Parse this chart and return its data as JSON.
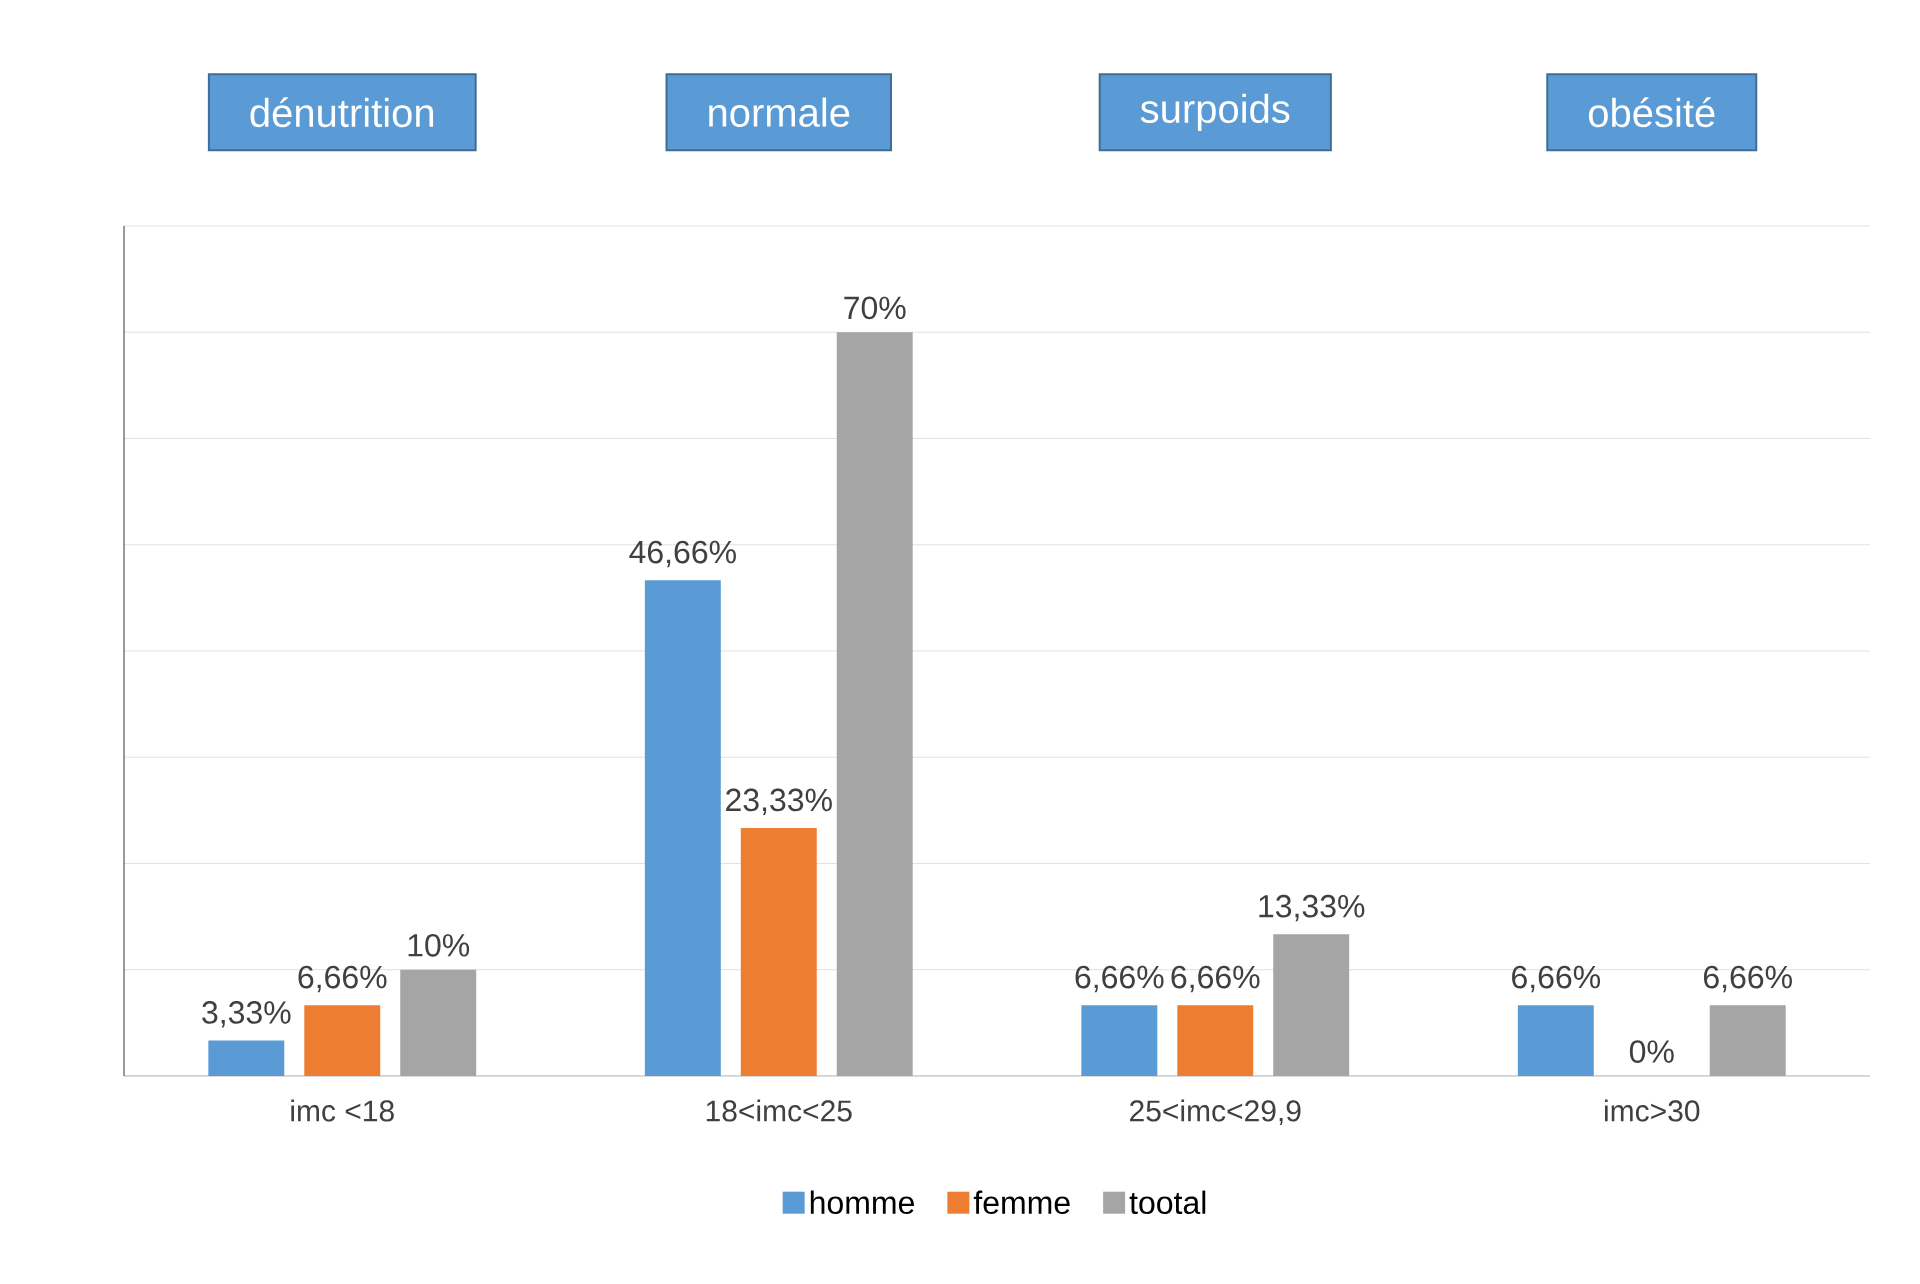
{
  "chart_data": {
    "type": "bar",
    "categories": [
      "imc <18",
      "18<imc<25",
      "25<imc<29,9",
      "imc>30"
    ],
    "series": [
      {
        "name": "homme",
        "color": "#5b9bd5",
        "values": [
          3.33,
          46.66,
          6.66,
          6.66
        ],
        "value_labels": [
          "3,33%",
          "46,66%",
          "6,66%",
          "6,66%"
        ]
      },
      {
        "name": "femme",
        "color": "#ed7d31",
        "values": [
          6.66,
          23.33,
          6.66,
          0
        ],
        "value_labels": [
          "6,66%",
          "23,33%",
          "6,66%",
          "0%"
        ]
      },
      {
        "name": "tootal",
        "color": "#a5a5a5",
        "values": [
          10,
          70,
          13.33,
          6.66
        ],
        "value_labels": [
          "10%",
          "70%",
          "13,33%",
          "6,66%"
        ]
      }
    ],
    "annotations": [
      "dénutrition",
      "normale",
      "surpoids",
      "obésité"
    ],
    "ylim": [
      0,
      80
    ],
    "yticks": [
      0,
      10,
      20,
      30,
      40,
      50,
      60,
      70,
      80
    ],
    "tick_labels": "x",
    "grid": "y",
    "legend": "bottom"
  }
}
